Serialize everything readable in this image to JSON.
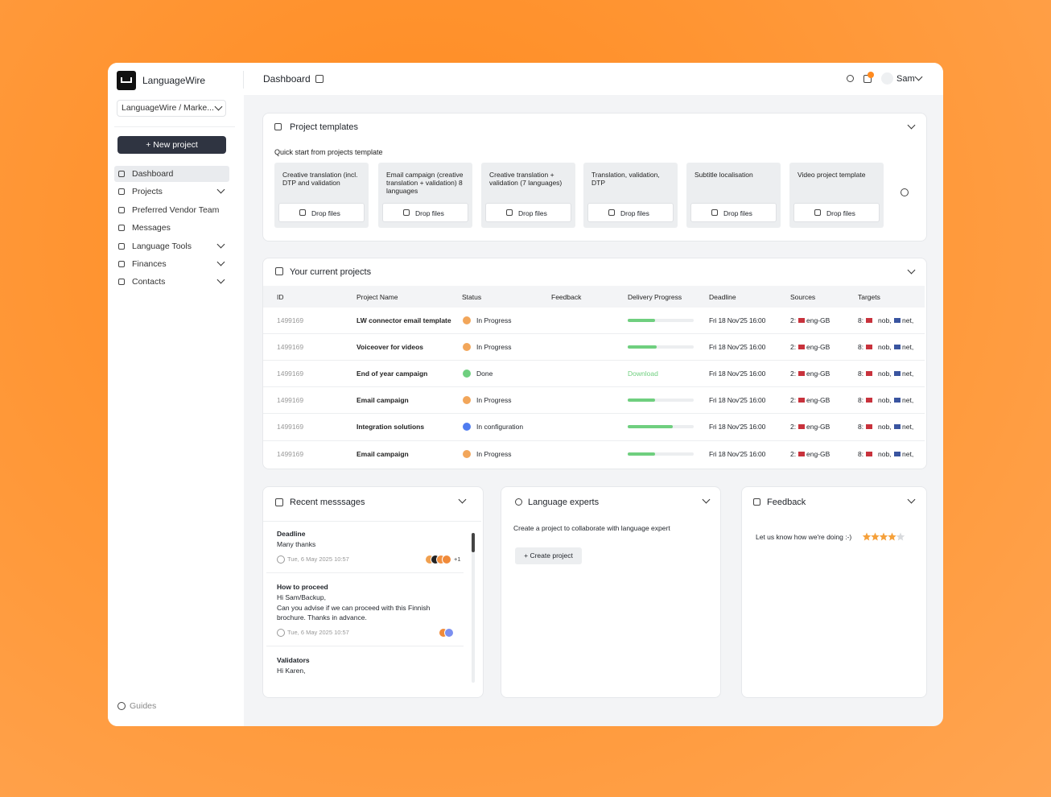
{
  "sidebar": {
    "brand": "LanguageWire",
    "workspace": "LanguageWire / Marke...",
    "new_project": "+ New project",
    "nav": [
      {
        "label": "Dashboard",
        "active": true
      },
      {
        "label": "Projects",
        "expandable": true
      },
      {
        "label": "Preferred Vendor Team"
      },
      {
        "label": "Messages"
      },
      {
        "label": "Language Tools",
        "expandable": true
      },
      {
        "label": "Finances",
        "expandable": true
      },
      {
        "label": "Contacts",
        "expandable": true
      }
    ],
    "guides": "Guides"
  },
  "header": {
    "title": "Dashboard",
    "user": "Sam"
  },
  "templates": {
    "title": "Project templates",
    "subtitle": "Quick start from projects template",
    "items": [
      {
        "name": "Creative translation (incl. DTP and validation",
        "action": "Drop files"
      },
      {
        "name": "Email campaign (creative translation + validation) 8 languages",
        "action": "Drop files"
      },
      {
        "name": "Creative translation + validation (7 languages)",
        "action": "Drop files"
      },
      {
        "name": "Translation, validation, DTP",
        "action": "Drop files"
      },
      {
        "name": "Subtitle localisation",
        "action": "Drop files"
      },
      {
        "name": "Video project template",
        "action": "Drop files"
      }
    ]
  },
  "projects": {
    "title": "Your current projects",
    "columns": [
      "ID",
      "Project Name",
      "Status",
      "Feedback",
      "Delivery Progress",
      "Deadline",
      "Sources",
      "Targets"
    ],
    "rows": [
      {
        "id": "1499169",
        "name": "LW connector email template",
        "status": "In Progress",
        "status_color": "#f2a65a",
        "progress": 0.41,
        "deadline": "Fri 18 Nov'25 16:00",
        "sources": "2:",
        "source_lang": "eng-GB",
        "targets": "8:",
        "target_langs": [
          "nob,",
          "net,"
        ]
      },
      {
        "id": "1499169",
        "name": "Voiceover for videos",
        "status": "In Progress",
        "status_color": "#f2a65a",
        "progress": 0.44,
        "deadline": "Fri 18 Nov'25 16:00",
        "sources": "2:",
        "source_lang": "eng-GB",
        "targets": "8:",
        "target_langs": [
          "nob,",
          "net,"
        ]
      },
      {
        "id": "1499169",
        "name": "End of year campaign",
        "status": "Done",
        "status_color": "#6fcf7f",
        "download": "Download",
        "deadline": "Fri 18 Nov'25 16:00",
        "sources": "2:",
        "source_lang": "eng-GB",
        "targets": "8:",
        "target_langs": [
          "nob,",
          "net,"
        ]
      },
      {
        "id": "1499169",
        "name": "Email campaign",
        "status": "In Progress",
        "status_color": "#f2a65a",
        "progress": 0.41,
        "deadline": "Fri 18 Nov'25 16:00",
        "sources": "2:",
        "source_lang": "eng-GB",
        "targets": "8:",
        "target_langs": [
          "nob,",
          "net,"
        ]
      },
      {
        "id": "1499169",
        "name": "Integration solutions",
        "status": "In configuration",
        "status_color": "#4f7cf0",
        "progress": 0.68,
        "deadline": "Fri 18 Nov'25 16:00",
        "sources": "2:",
        "source_lang": "eng-GB",
        "targets": "8:",
        "target_langs": [
          "nob,",
          "net,"
        ]
      },
      {
        "id": "1499169",
        "name": "Email campaign",
        "status": "In Progress",
        "status_color": "#f2a65a",
        "progress": 0.41,
        "deadline": "Fri 18 Nov'25 16:00",
        "sources": "2:",
        "source_lang": "eng-GB",
        "targets": "8:",
        "target_langs": [
          "nob,",
          "net,"
        ]
      }
    ]
  },
  "messages": {
    "title": "Recent messsages",
    "items": [
      {
        "title": "Deadline",
        "lines": [
          "Many thanks"
        ],
        "time": "Tue, 6 May 2025 10:57",
        "extra": "+1"
      },
      {
        "title": "How to proceed",
        "lines": [
          "Hi Sam/Backup,",
          "Can you advise if we can proceed with this Finnish",
          "brochure. Thanks in advance."
        ],
        "time": "Tue, 6 May 2025 10:57"
      },
      {
        "title": "Validators",
        "lines": [
          "Hi Karen,"
        ]
      }
    ]
  },
  "experts": {
    "title": "Language experts",
    "text": "Create a project to collaborate with language expert",
    "button": "+ Create project"
  },
  "feedback": {
    "title": "Feedback",
    "text": "Let us know how we're doing :-)",
    "rating": 4,
    "rating_max": 5
  }
}
